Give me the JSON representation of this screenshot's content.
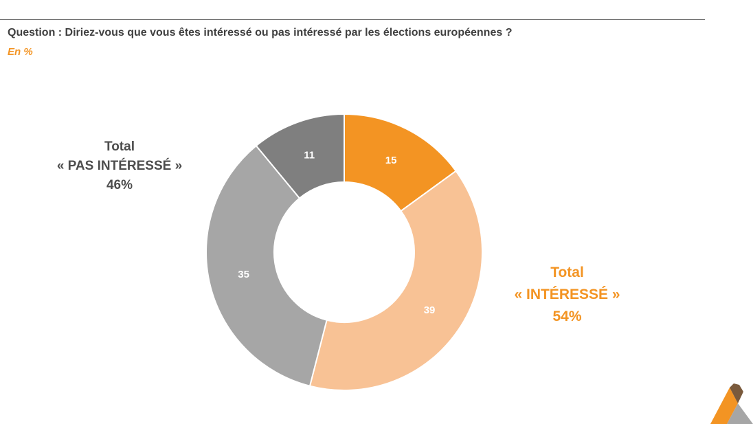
{
  "header": {
    "question": "Question : Diriez-vous que vous êtes intéressé ou pas intéressé par les élections européennes ?",
    "unit": "En  %"
  },
  "annotations": {
    "not_interested": {
      "line1": "Total",
      "line2": "« PAS INTÉRESSÉ »",
      "line3": "46%"
    },
    "interested": {
      "line1": "Total",
      "line2": "« INTÉRESSÉ »",
      "line3": "54%"
    }
  },
  "logo": {
    "icon": "brand-logo-icon",
    "colors": [
      "#f39423",
      "#7a5a3c",
      "#a6a6a6"
    ]
  },
  "chart_data": {
    "type": "pie",
    "donut": true,
    "title": "",
    "legend": "none",
    "start_angle_deg": 0,
    "direction": "clockwise",
    "slices": [
      {
        "value": 15,
        "label": "15",
        "color": "#f39423",
        "label_color": "#ffffff"
      },
      {
        "value": 39,
        "label": "39",
        "color": "#f8c295",
        "label_color": "#ffffff"
      },
      {
        "value": 35,
        "label": "35",
        "color": "#a6a6a6",
        "label_color": "#ffffff"
      },
      {
        "value": 11,
        "label": "11",
        "color": "#7f7f7f",
        "label_color": "#ffffff"
      }
    ]
  }
}
